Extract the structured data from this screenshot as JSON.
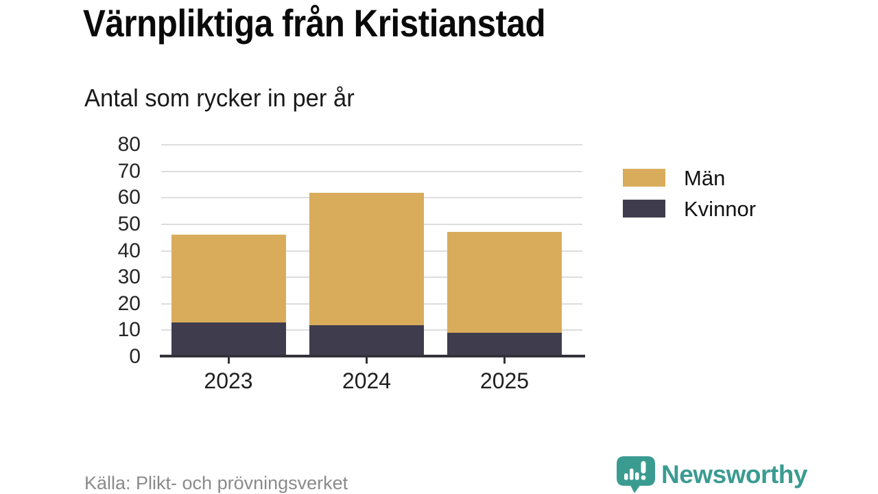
{
  "header": {
    "title": "Värnpliktiga från Kristianstad",
    "subtitle": "Antal som rycker in per år"
  },
  "chart_data": {
    "type": "bar",
    "variant": "stacked-vertical",
    "title": "Värnpliktiga från Kristianstad",
    "subtitle": "Antal som rycker in per år",
    "categories": [
      "2023",
      "2024",
      "2025"
    ],
    "series": [
      {
        "name": "Kvinnor",
        "color": "#3F3D4D",
        "values": [
          13,
          12,
          9
        ]
      },
      {
        "name": "Män",
        "color": "#D9AC5C",
        "values": [
          33,
          50,
          38
        ]
      }
    ],
    "stack_totals": [
      46,
      62,
      47
    ],
    "ylim": [
      0,
      80
    ],
    "ytick_step": 10,
    "yticks": [
      0,
      10,
      20,
      30,
      40,
      50,
      60,
      70,
      80
    ],
    "grid": "horizontal",
    "legend": [
      {
        "label": "Män",
        "color": "#D9AC5C"
      },
      {
        "label": "Kvinnor",
        "color": "#3F3D4D"
      }
    ],
    "legend_position": "right"
  },
  "footer": {
    "source": "Källa: Plikt- och prövningsverket",
    "brand": "Newsworthy"
  },
  "colors": {
    "men": "#D9AC5C",
    "women": "#3F3D4D",
    "brand_teal": "#3A9B91",
    "gridline": "#DDDDDD",
    "axis": "#33323A",
    "source_text": "#8A8A8A"
  },
  "icons": {
    "logo": "newsworthy-speech-bubble-bar-chart-icon"
  }
}
